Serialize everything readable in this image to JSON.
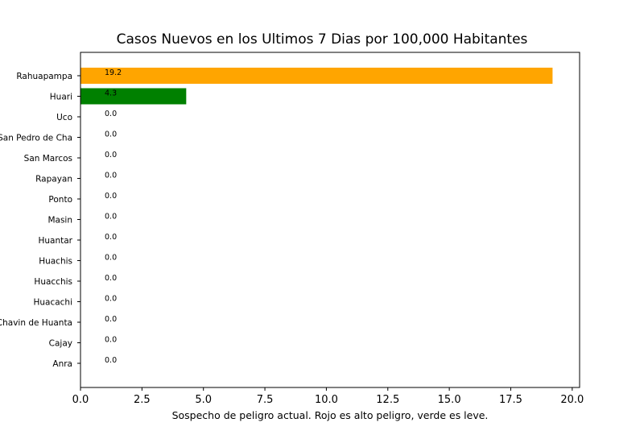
{
  "chart_data": {
    "type": "bar",
    "orientation": "horizontal",
    "title": "Casos Nuevos en los Ultimos 7 Dias por 100,000 Habitantes",
    "xlabel": "Sospecho de peligro actual. Rojo es alto peligro, verde es leve.",
    "ylabel": "",
    "xlim": [
      0,
      20.3
    ],
    "xticks": [
      "0.0",
      "2.5",
      "5.0",
      "7.5",
      "10.0",
      "12.5",
      "15.0",
      "17.5",
      "20.0"
    ],
    "categories": [
      "Rahuapampa",
      "Huari",
      "Uco",
      "San Pedro de Cha",
      "San Marcos",
      "Rapayan",
      "Ponto",
      "Masin",
      "Huantar",
      "Huachis",
      "Huacchis",
      "Huacachi",
      "Chavin de Huanta",
      "Cajay",
      "Anra"
    ],
    "values": [
      19.2,
      4.3,
      0.0,
      0.0,
      0.0,
      0.0,
      0.0,
      0.0,
      0.0,
      0.0,
      0.0,
      0.0,
      0.0,
      0.0,
      0.0
    ],
    "data_labels": [
      "19.2",
      "4.3",
      "0.0",
      "0.0",
      "0.0",
      "0.0",
      "0.0",
      "0.0",
      "0.0",
      "0.0",
      "0.0",
      "0.0",
      "0.0",
      "0.0",
      "0.0"
    ],
    "colors": [
      "#ffa500",
      "#008000",
      "#008000",
      "#008000",
      "#008000",
      "#008000",
      "#008000",
      "#008000",
      "#008000",
      "#008000",
      "#008000",
      "#008000",
      "#008000",
      "#008000",
      "#008000"
    ],
    "grid": false,
    "legend": "none"
  }
}
